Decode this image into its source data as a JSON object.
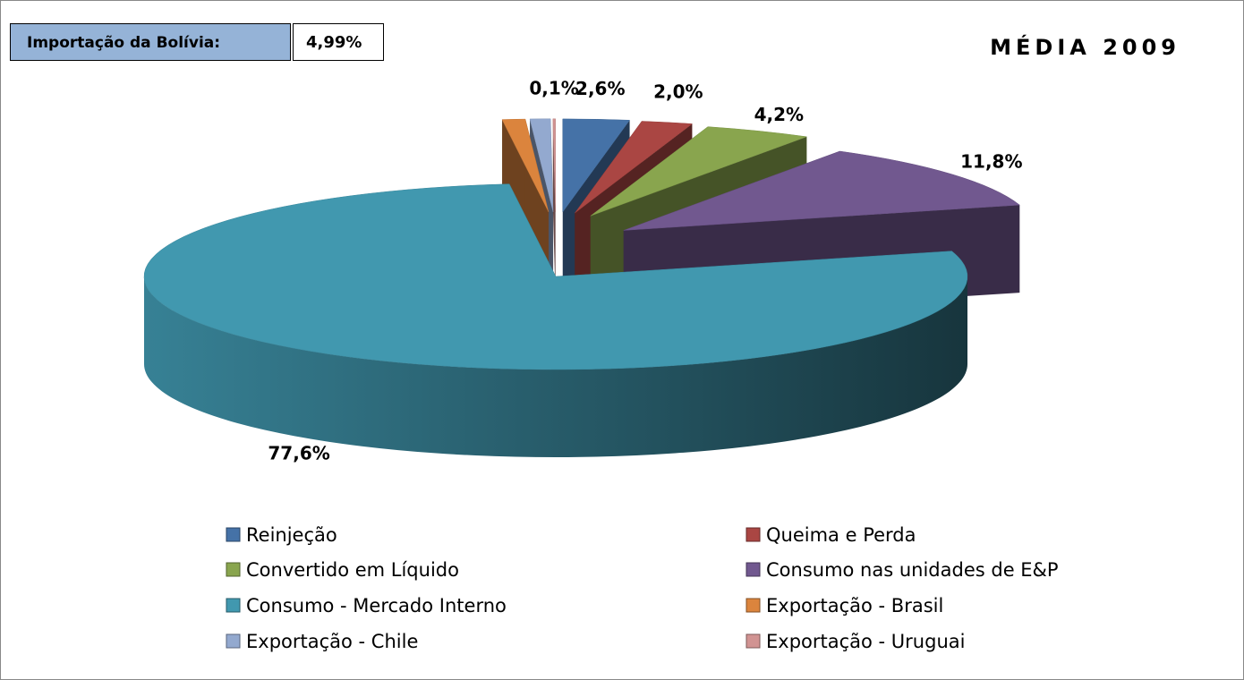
{
  "chart_data": {
    "type": "pie3d",
    "title": "MÉDIA 2009",
    "note": {
      "label": "Importação da Bolívia:",
      "value": "4,99%"
    },
    "categories": [
      "Reinjeção",
      "Queima e Perda",
      "Convertido em Líquido",
      "Consumo nas unidades de E&P",
      "Consumo - Mercado Interno",
      "Exportação - Brasil",
      "Exportação - Chile",
      "Exportação - Uruguai"
    ],
    "values": [
      2.6,
      2.0,
      4.2,
      11.8,
      77.6,
      0.9,
      0.8,
      0.1
    ],
    "value_labels": [
      "2,6%",
      "2,0%",
      "4,2%",
      "11,8%",
      "77,6%",
      null,
      null,
      "0,1%"
    ],
    "colors": [
      "#4572a7",
      "#aa4643",
      "#89a54e",
      "#71588f",
      "#4198af",
      "#db843d",
      "#93a9cf",
      "#d19392"
    ],
    "legend": "bottom"
  }
}
